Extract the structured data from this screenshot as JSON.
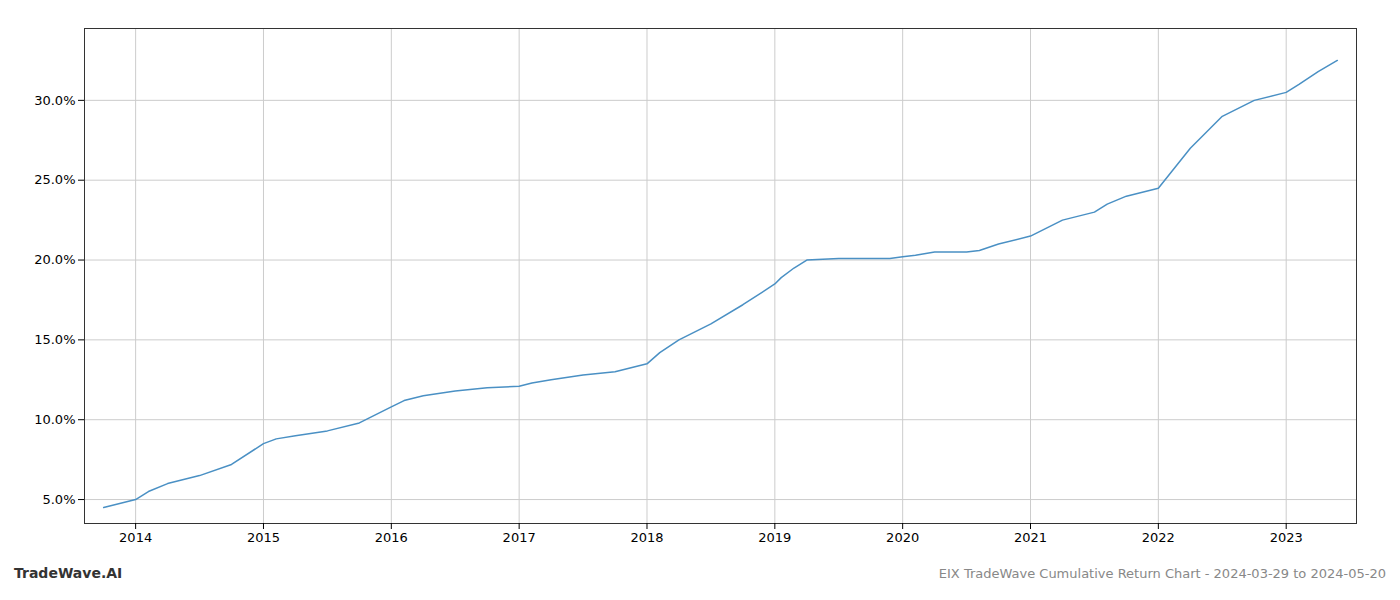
{
  "chart_data": {
    "type": "line",
    "title": "EIX TradeWave Cumulative Return Chart - 2024-03-29 to 2024-05-20",
    "annotations": [
      "TradeWave.AI"
    ],
    "color": "#4a90c4",
    "x": [
      2013.75,
      2014.0,
      2014.1,
      2014.25,
      2014.5,
      2014.75,
      2015.0,
      2015.1,
      2015.25,
      2015.5,
      2015.75,
      2016.0,
      2016.1,
      2016.25,
      2016.5,
      2016.75,
      2017.0,
      2017.1,
      2017.25,
      2017.5,
      2017.75,
      2018.0,
      2018.1,
      2018.25,
      2018.5,
      2018.75,
      2019.0,
      2019.05,
      2019.15,
      2019.25,
      2019.5,
      2019.75,
      2019.9,
      2020.0,
      2020.1,
      2020.25,
      2020.5,
      2020.6,
      2020.75,
      2021.0,
      2021.25,
      2021.5,
      2021.6,
      2021.75,
      2022.0,
      2022.1,
      2022.25,
      2022.5,
      2022.75,
      2023.0,
      2023.1,
      2023.25,
      2023.4
    ],
    "values": [
      4.5,
      5.0,
      5.5,
      6.0,
      6.5,
      7.2,
      8.5,
      8.8,
      9.0,
      9.3,
      9.8,
      10.8,
      11.2,
      11.5,
      11.8,
      12.0,
      12.1,
      12.3,
      12.5,
      12.8,
      13.0,
      13.5,
      14.2,
      15.0,
      16.0,
      17.2,
      18.5,
      18.9,
      19.5,
      20.0,
      20.1,
      20.1,
      20.1,
      20.2,
      20.3,
      20.5,
      20.5,
      20.6,
      21.0,
      21.5,
      22.5,
      23.0,
      23.5,
      24.0,
      24.5,
      25.5,
      27.0,
      29.0,
      30.0,
      30.5,
      31.0,
      31.8,
      32.5
    ],
    "xlim": [
      2013.6,
      2023.55
    ],
    "ylim": [
      3.5,
      34.5
    ],
    "xticks": [
      2014,
      2015,
      2016,
      2017,
      2018,
      2019,
      2020,
      2021,
      2022,
      2023
    ],
    "yticks": [
      {
        "value": 5.0,
        "label": "5.0%"
      },
      {
        "value": 10.0,
        "label": "10.0%"
      },
      {
        "value": 15.0,
        "label": "15.0%"
      },
      {
        "value": 20.0,
        "label": "20.0%"
      },
      {
        "value": 25.0,
        "label": "25.0%"
      },
      {
        "value": 30.0,
        "label": "30.0%"
      }
    ],
    "grid": true
  }
}
